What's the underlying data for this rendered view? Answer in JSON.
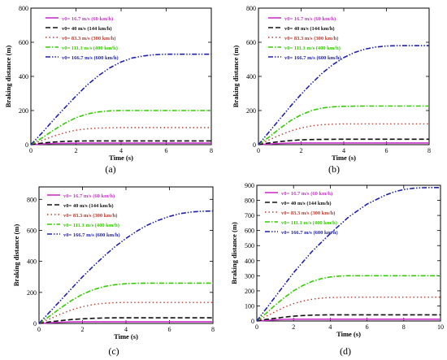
{
  "figure": {
    "panels": [
      {
        "label": "(a)"
      },
      {
        "label": "(b)"
      },
      {
        "label": "(c)"
      },
      {
        "label": "(d)"
      }
    ]
  },
  "series_style": [
    {
      "color": "#cc33cc",
      "dash": "solid",
      "width": 1.6
    },
    {
      "color": "#111111",
      "dash": "6,3",
      "width": 1.6
    },
    {
      "color": "#c0392b",
      "dash": "1.5,3",
      "width": 1.4
    },
    {
      "color": "#33cc00",
      "dash": "6,2,1.5,2",
      "width": 1.6
    },
    {
      "color": "#1f1fb0",
      "dash": "6,2,1.5,2,1.5,2",
      "width": 1.6
    }
  ],
  "chart_data": [
    {
      "type": "line",
      "panel": "(a)",
      "xlabel": "Time (s)",
      "ylabel": "Braking distance (m)",
      "xlim": [
        0,
        8
      ],
      "ylim": [
        0,
        800
      ],
      "xticks": [
        0,
        2,
        4,
        6,
        8
      ],
      "yticks": [
        0,
        200,
        400,
        600,
        800
      ],
      "grid": false,
      "legend_position": "top-left",
      "series": [
        {
          "name": "v0= 16.7 m/s (60 km/h)",
          "x": [
            0,
            0.5,
            1,
            1.5,
            2,
            2.5,
            3,
            4,
            5,
            6,
            7,
            8
          ],
          "y": [
            0,
            4,
            7,
            8,
            8.5,
            9,
            9,
            9,
            9,
            9,
            9,
            9
          ]
        },
        {
          "name": "v0= 40 m/s (144 km/h)",
          "x": [
            0,
            0.5,
            1,
            1.5,
            2,
            2.5,
            3,
            4,
            5,
            6,
            7,
            8
          ],
          "y": [
            0,
            9,
            15,
            19,
            21,
            22,
            22,
            22,
            22,
            22,
            22,
            22
          ]
        },
        {
          "name": "v0= 83.3 m/s (300 km/h)",
          "x": [
            0,
            0.5,
            1,
            1.5,
            2,
            2.5,
            3,
            4,
            5,
            6,
            7,
            8
          ],
          "y": [
            0,
            25,
            50,
            70,
            85,
            93,
            97,
            100,
            100,
            100,
            100,
            100
          ]
        },
        {
          "name": "v0= 111.1 m/s (400 km/h)",
          "x": [
            0,
            0.5,
            1,
            1.5,
            2,
            2.5,
            3,
            3.5,
            4,
            5,
            6,
            7,
            8
          ],
          "y": [
            0,
            40,
            85,
            125,
            158,
            180,
            192,
            198,
            200,
            200,
            200,
            200,
            200
          ]
        },
        {
          "name": "v0= 166.7 m/s (600 km/h)",
          "x": [
            0,
            0.5,
            1,
            1.5,
            2,
            2.5,
            3,
            3.5,
            4,
            4.5,
            5,
            5.5,
            6,
            7,
            8
          ],
          "y": [
            0,
            70,
            145,
            215,
            285,
            350,
            405,
            450,
            485,
            508,
            520,
            527,
            530,
            530,
            530
          ]
        }
      ]
    },
    {
      "type": "line",
      "panel": "(b)",
      "xlabel": "Time (s)",
      "ylabel": "Braking distance (m)",
      "xlim": [
        0,
        8
      ],
      "ylim": [
        0,
        800
      ],
      "xticks": [
        0,
        2,
        4,
        6,
        8
      ],
      "yticks": [
        0,
        200,
        400,
        600,
        800
      ],
      "grid": false,
      "legend_position": "top-left",
      "series": [
        {
          "name": "v0= 16.7 m/s (60 km/h)",
          "x": [
            0,
            0.5,
            1,
            1.5,
            2,
            3,
            4,
            5,
            6,
            7,
            8
          ],
          "y": [
            0,
            4,
            7,
            9,
            10,
            10,
            10,
            10,
            10,
            10,
            10
          ]
        },
        {
          "name": "v0= 40 m/s (144 km/h)",
          "x": [
            0,
            0.5,
            1,
            1.5,
            2,
            2.5,
            3,
            4,
            5,
            6,
            7,
            8
          ],
          "y": [
            0,
            10,
            18,
            24,
            28,
            30,
            31,
            32,
            32,
            32,
            32,
            32
          ]
        },
        {
          "name": "v0= 83.3 m/s (300 km/h)",
          "x": [
            0,
            0.5,
            1,
            1.5,
            2,
            2.5,
            3,
            3.5,
            4,
            5,
            6,
            7,
            8
          ],
          "y": [
            0,
            28,
            55,
            80,
            98,
            110,
            117,
            120,
            122,
            122,
            122,
            122,
            122
          ]
        },
        {
          "name": "v0= 111.1 m/s (400 km/h)",
          "x": [
            0,
            0.5,
            1,
            1.5,
            2,
            2.5,
            3,
            3.5,
            4,
            5,
            6,
            7,
            8
          ],
          "y": [
            0,
            45,
            95,
            140,
            175,
            200,
            215,
            222,
            225,
            226,
            226,
            226,
            226
          ]
        },
        {
          "name": "v0= 166.7 m/s (600 km/h)",
          "x": [
            0,
            0.5,
            1,
            1.5,
            2,
            2.5,
            3,
            3.5,
            4,
            4.5,
            5,
            5.5,
            6,
            6.5,
            7,
            8
          ],
          "y": [
            0,
            75,
            150,
            225,
            295,
            360,
            420,
            470,
            510,
            540,
            560,
            572,
            578,
            580,
            580,
            580
          ]
        }
      ]
    },
    {
      "type": "line",
      "panel": "(c)",
      "xlabel": "Time (s)",
      "ylabel": "Braking distance (m)",
      "xlim": [
        0,
        8
      ],
      "ylim": [
        0,
        880
      ],
      "xticks": [
        0,
        2,
        4,
        6,
        8
      ],
      "yticks": [
        0,
        200,
        400,
        600,
        800
      ],
      "grid": false,
      "legend_position": "top-left",
      "series": [
        {
          "name": "v0= 16.7 m/s (60 km/h)",
          "x": [
            0,
            0.5,
            1,
            1.5,
            2,
            3,
            4,
            5,
            6,
            7,
            8
          ],
          "y": [
            0,
            4,
            8,
            10,
            11,
            11,
            11,
            11,
            11,
            11,
            11
          ]
        },
        {
          "name": "v0= 40 m/s (144 km/h)",
          "x": [
            0,
            0.5,
            1,
            1.5,
            2,
            2.5,
            3,
            3.5,
            4,
            5,
            6,
            7,
            8
          ],
          "y": [
            0,
            10,
            18,
            25,
            30,
            33,
            35,
            36,
            36,
            36,
            36,
            36,
            36
          ]
        },
        {
          "name": "v0= 83.3 m/s (300 km/h)",
          "x": [
            0,
            0.5,
            1,
            1.5,
            2,
            2.5,
            3,
            3.5,
            4,
            5,
            6,
            7,
            8
          ],
          "y": [
            0,
            30,
            60,
            88,
            108,
            122,
            130,
            134,
            135,
            135,
            135,
            135,
            135
          ]
        },
        {
          "name": "v0= 111.1 m/s (400 km/h)",
          "x": [
            0,
            0.5,
            1,
            1.5,
            2,
            2.5,
            3,
            3.5,
            4,
            4.5,
            5,
            6,
            7,
            8
          ],
          "y": [
            0,
            48,
            100,
            148,
            188,
            218,
            238,
            250,
            256,
            259,
            260,
            260,
            260,
            260
          ]
        },
        {
          "name": "v0= 166.7 m/s (600 km/h)",
          "x": [
            0,
            0.5,
            1,
            1.5,
            2,
            2.5,
            3,
            3.5,
            4,
            4.5,
            5,
            5.5,
            6,
            6.5,
            7,
            7.5,
            8
          ],
          "y": [
            0,
            75,
            150,
            225,
            300,
            370,
            435,
            495,
            548,
            595,
            635,
            665,
            690,
            708,
            718,
            723,
            725
          ]
        }
      ]
    },
    {
      "type": "line",
      "panel": "(d)",
      "xlabel": "Time (s)",
      "ylabel": "Braking distance (m)",
      "xlim": [
        0,
        10
      ],
      "ylim": [
        0,
        900
      ],
      "xticks": [
        0,
        2,
        4,
        6,
        8,
        10
      ],
      "yticks": [
        0,
        100,
        200,
        300,
        400,
        500,
        600,
        700,
        800,
        900
      ],
      "grid": false,
      "legend_position": "top-left",
      "series": [
        {
          "name": "v0= 16.7 m/s (60 km/h)",
          "x": [
            0,
            0.5,
            1,
            1.5,
            2,
            3,
            4,
            6,
            8,
            10
          ],
          "y": [
            0,
            4,
            8,
            11,
            12,
            12,
            12,
            12,
            12,
            12
          ]
        },
        {
          "name": "v0= 40 m/s (144 km/h)",
          "x": [
            0,
            0.5,
            1,
            1.5,
            2,
            2.5,
            3,
            4,
            5,
            6,
            8,
            10
          ],
          "y": [
            0,
            10,
            18,
            26,
            32,
            36,
            39,
            41,
            41,
            41,
            41,
            41
          ]
        },
        {
          "name": "v0= 83.3 m/s (300 km/h)",
          "x": [
            0,
            0.5,
            1,
            1.5,
            2,
            2.5,
            3,
            3.5,
            4,
            5,
            6,
            8,
            10
          ],
          "y": [
            0,
            30,
            62,
            92,
            115,
            132,
            144,
            152,
            156,
            158,
            158,
            158,
            158
          ]
        },
        {
          "name": "v0= 111.1 m/s (400 km/h)",
          "x": [
            0,
            0.5,
            1,
            1.5,
            2,
            2.5,
            3,
            3.5,
            4,
            4.5,
            5,
            6,
            8,
            10
          ],
          "y": [
            0,
            50,
            105,
            155,
            200,
            235,
            262,
            280,
            292,
            298,
            300,
            300,
            300,
            300
          ]
        },
        {
          "name": "v0= 166.7 m/s (600 km/h)",
          "x": [
            0,
            1,
            2,
            3,
            4,
            5,
            6,
            7,
            7.5,
            8,
            8.5,
            9,
            9.5,
            10
          ],
          "y": [
            0,
            160,
            320,
            460,
            580,
            690,
            775,
            835,
            857,
            872,
            880,
            884,
            885,
            885
          ]
        }
      ]
    }
  ]
}
